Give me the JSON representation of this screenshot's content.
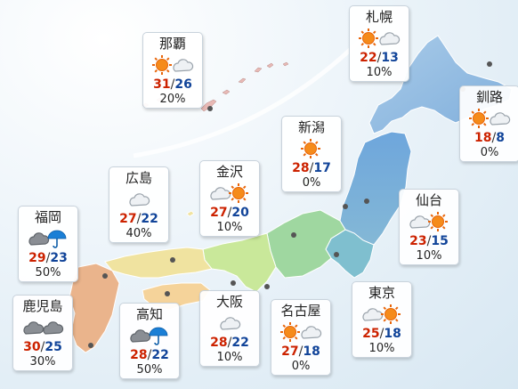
{
  "colors": {
    "high_temp": "#cc2200",
    "low_temp": "#114499",
    "sea": "#dbe9f3"
  },
  "forecasts": [
    {
      "city": "札幌",
      "weather": [
        "sun-icon",
        "cloud-icon"
      ],
      "high": "22",
      "low": "13",
      "pop": "10%"
    },
    {
      "city": "那覇",
      "weather": [
        "sun-icon",
        "cloud-icon"
      ],
      "high": "31",
      "low": "26",
      "pop": "20%"
    },
    {
      "city": "釧路",
      "weather": [
        "sun-icon",
        "cloud-icon"
      ],
      "high": "18",
      "low": "8",
      "pop": "0%"
    },
    {
      "city": "新潟",
      "weather": [
        "sun-icon"
      ],
      "high": "28",
      "low": "17",
      "pop": "0%"
    },
    {
      "city": "広島",
      "weather": [
        "cloud-icon"
      ],
      "high": "27",
      "low": "22",
      "pop": "40%"
    },
    {
      "city": "金沢",
      "weather": [
        "cloud-icon",
        "sun-icon"
      ],
      "high": "27",
      "low": "20",
      "pop": "10%"
    },
    {
      "city": "仙台",
      "weather": [
        "cloud-icon",
        "sun-icon"
      ],
      "high": "23",
      "low": "15",
      "pop": "10%"
    },
    {
      "city": "福岡",
      "weather": [
        "cloud-icon",
        "umbrella-icon"
      ],
      "high": "29",
      "low": "23",
      "pop": "50%"
    },
    {
      "city": "東京",
      "weather": [
        "cloud-icon",
        "sun-icon"
      ],
      "high": "25",
      "low": "18",
      "pop": "10%"
    },
    {
      "city": "大阪",
      "weather": [
        "cloud-icon"
      ],
      "high": "28",
      "low": "22",
      "pop": "10%"
    },
    {
      "city": "名古屋",
      "weather": [
        "sun-icon",
        "cloud-icon"
      ],
      "high": "27",
      "low": "18",
      "pop": "0%"
    },
    {
      "city": "鹿児島",
      "weather": [
        "cloud-icon",
        "cloud-icon"
      ],
      "high": "30",
      "low": "25",
      "pop": "30%"
    },
    {
      "city": "高知",
      "weather": [
        "cloud-icon",
        "umbrella-icon"
      ],
      "high": "28",
      "low": "22",
      "pop": "50%"
    }
  ]
}
